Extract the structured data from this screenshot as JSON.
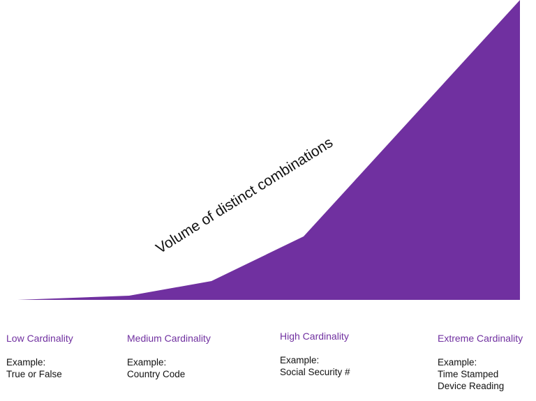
{
  "colors": {
    "area_fill": "#7030a0",
    "label_color": "#7030a0",
    "text_color": "#111111"
  },
  "area_label": "Volume of distinct combinations",
  "levels": [
    {
      "title": "Low Cardinality",
      "example_label": "Example:",
      "example_lines": [
        "True or False"
      ]
    },
    {
      "title": "Medium Cardinality",
      "example_label": "Example:",
      "example_lines": [
        "Country Code"
      ]
    },
    {
      "title": "High Cardinality",
      "example_label": "Example:",
      "example_lines": [
        "Social Security #"
      ]
    },
    {
      "title": "Extreme Cardinality",
      "example_label": "Example:",
      "example_lines": [
        "Time Stamped",
        "Device Reading"
      ]
    }
  ]
}
